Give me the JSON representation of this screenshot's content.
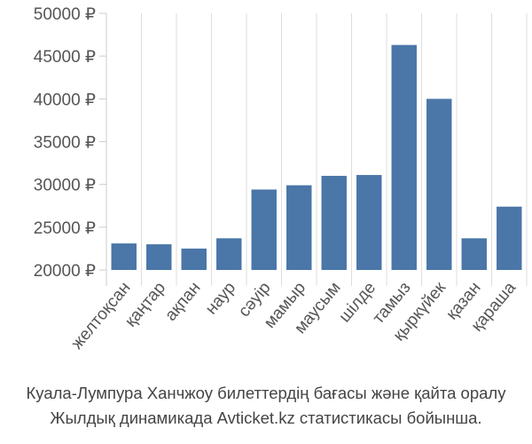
{
  "chart_data": {
    "type": "bar",
    "title": "",
    "xlabel": "",
    "ylabel": "",
    "categories": [
      "желтоқсан",
      "қаңтар",
      "ақпан",
      "наур",
      "сәуір",
      "мамыр",
      "маусым",
      "шілде",
      "тамыз",
      "қыркүйек",
      "қазан",
      "қараша"
    ],
    "values": [
      23100,
      23000,
      22500,
      23700,
      29400,
      29900,
      31000,
      31100,
      46300,
      40000,
      23700,
      27400
    ],
    "ylim": [
      20000,
      50000
    ],
    "yticks": [
      20000,
      25000,
      30000,
      35000,
      40000,
      45000,
      50000
    ],
    "ytick_labels": [
      "20000 ₽",
      "25000 ₽",
      "30000 ₽",
      "35000 ₽",
      "40000 ₽",
      "45000 ₽",
      "50000 ₽"
    ],
    "grid": "vertical-between-bars",
    "legend": "none",
    "bar_color": "#4a76a8"
  },
  "caption": {
    "line1": "Куала-Лумпура Ханчжоу билеттердің бағасы және қайта оралу",
    "line2": "Жылдық динамикада Avticket.kz статистикасы бойынша."
  }
}
